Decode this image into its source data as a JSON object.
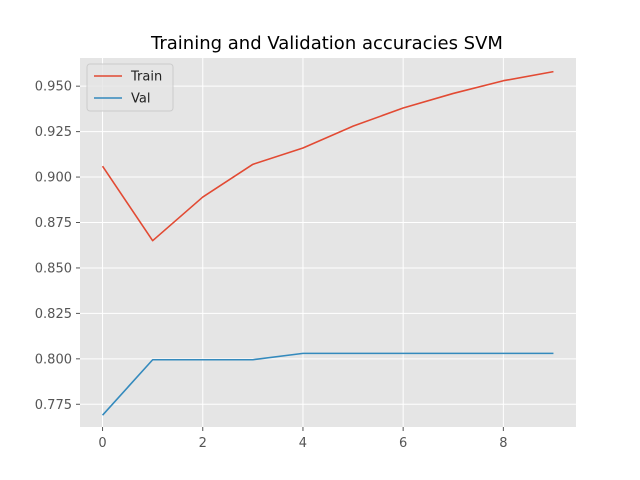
{
  "chart_data": {
    "type": "line",
    "title": "Training and Validation accuracies SVM",
    "xlabel": "",
    "ylabel": "",
    "x": [
      0,
      1,
      2,
      3,
      4,
      5,
      6,
      7,
      8,
      9
    ],
    "xticks": [
      0,
      2,
      4,
      6,
      8
    ],
    "yticks": [
      0.775,
      0.8,
      0.825,
      0.85,
      0.875,
      0.9,
      0.925,
      0.95
    ],
    "xlim": [
      -0.45,
      9.45
    ],
    "ylim": [
      0.7625,
      0.9655
    ],
    "grid": true,
    "legend_position": "top-left",
    "series": [
      {
        "name": "Train",
        "color": "#e24a33",
        "values": [
          0.906,
          0.865,
          0.889,
          0.907,
          0.916,
          0.928,
          0.938,
          0.946,
          0.953,
          0.958
        ]
      },
      {
        "name": "Val",
        "color": "#348abd",
        "values": [
          0.769,
          0.7995,
          0.7995,
          0.7995,
          0.803,
          0.803,
          0.803,
          0.803,
          0.803,
          0.803
        ]
      }
    ],
    "background": "#e5e5e5",
    "grid_color": "#ffffff"
  }
}
